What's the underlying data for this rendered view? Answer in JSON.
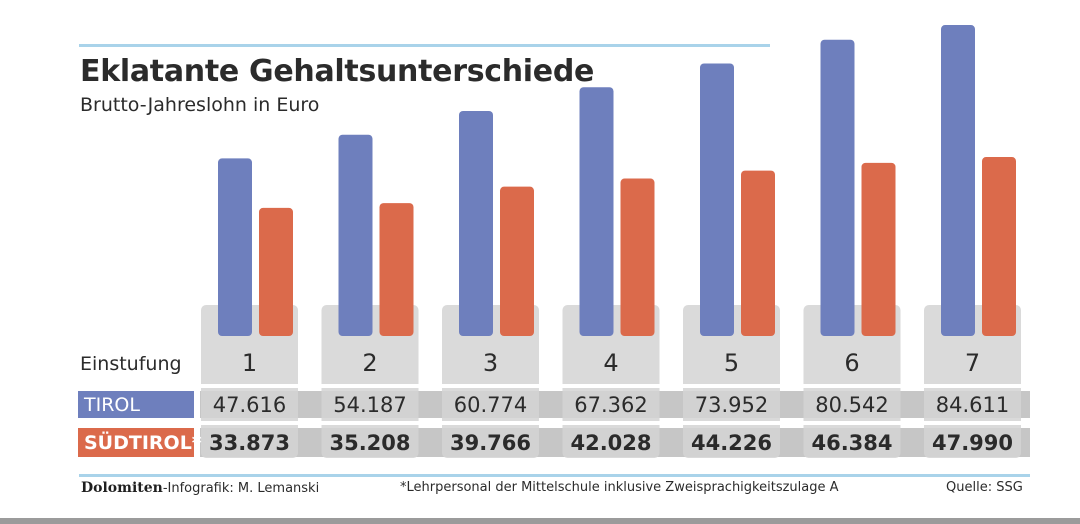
{
  "title": "Eklatante Gehaltsunterschiede",
  "subtitle": "Brutto-Jahreslohn in Euro",
  "row_labels": {
    "level": "Einstufung",
    "tirol": "TIROL",
    "suedtirol": "SÜDTIROL*"
  },
  "colors": {
    "tirol": "#6e7fbd",
    "suedtirol": "#db6a4b",
    "panel": "#d4d4d4",
    "row_band": "#c6c6c6"
  },
  "chart_data": {
    "type": "bar",
    "title": "Eklatante Gehaltsunterschiede",
    "subtitle": "Brutto-Jahreslohn in Euro",
    "xlabel": "Einstufung",
    "ylabel": "",
    "categories": [
      "1",
      "2",
      "3",
      "4",
      "5",
      "6",
      "7"
    ],
    "series": [
      {
        "name": "TIROL",
        "values": [
          47616,
          54187,
          60774,
          67362,
          73952,
          80542,
          84611
        ],
        "labels": [
          "47.616",
          "54.187",
          "60.774",
          "67.362",
          "73.952",
          "80.542",
          "84.611"
        ]
      },
      {
        "name": "SÜDTIROL*",
        "values": [
          33873,
          35208,
          39766,
          42028,
          44226,
          46384,
          47990
        ],
        "labels": [
          "33.873",
          "35.208",
          "39.766",
          "42.028",
          "44.226",
          "46.384",
          "47.990"
        ]
      }
    ],
    "grid": false,
    "legend": "left row labels"
  },
  "footer": {
    "brand": "Dolomiten",
    "credit": "-Infografik: M. Lemanski",
    "note": "*Lehrpersonal der Mittelschule inklusive Zweisprachigkeitszulage A",
    "source": "Quelle: SSG"
  }
}
